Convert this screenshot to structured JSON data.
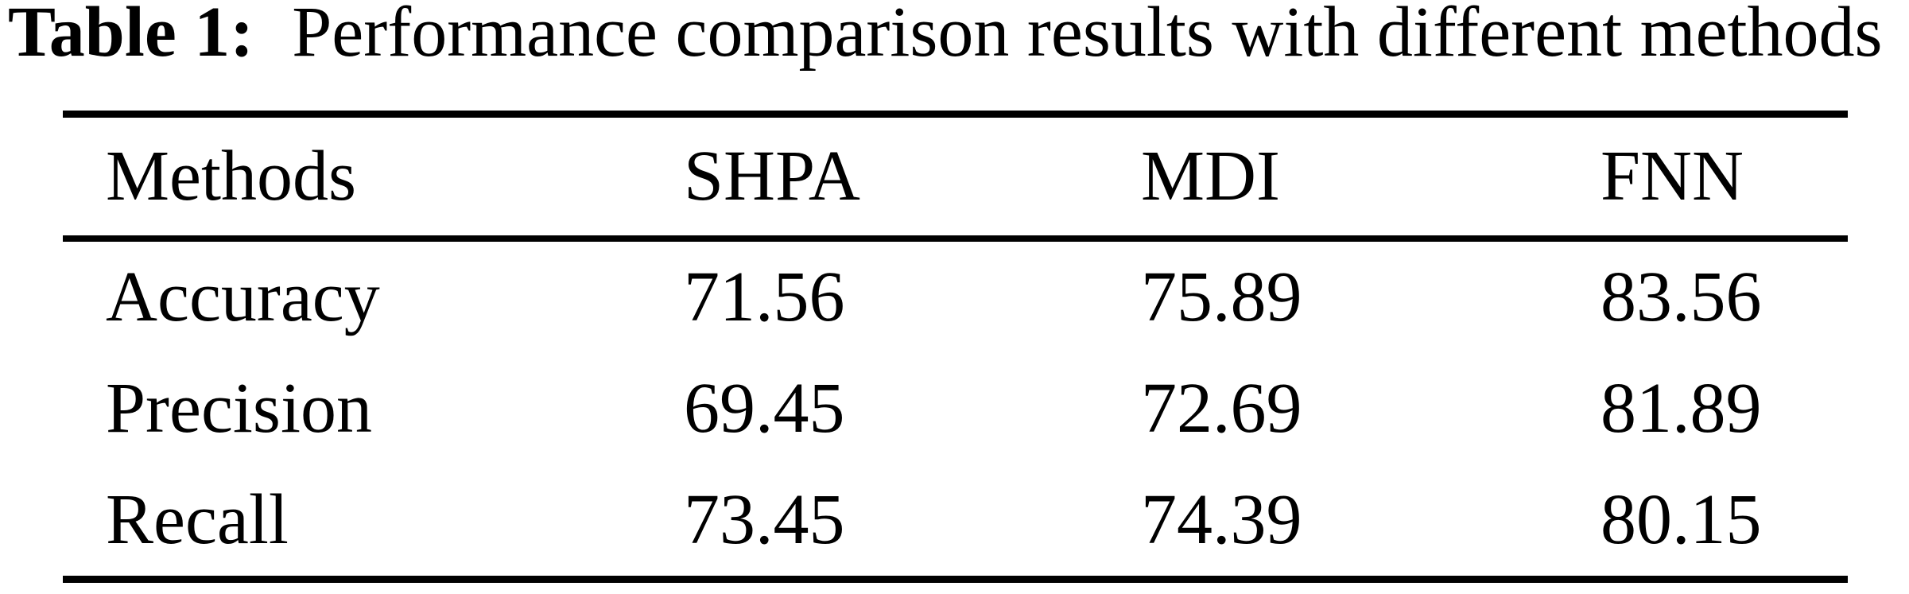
{
  "caption": {
    "label": "Table 1:",
    "text": "Performance comparison results with different methods"
  },
  "table": {
    "columns": [
      "Methods",
      "SHPA",
      "MDI",
      "FNN"
    ],
    "rows": [
      {
        "metric": "Accuracy",
        "values": [
          "71.56",
          "75.89",
          "83.56"
        ]
      },
      {
        "metric": "Precision",
        "values": [
          "69.45",
          "72.69",
          "81.89"
        ]
      },
      {
        "metric": "Recall",
        "values": [
          "73.45",
          "74.39",
          "80.15"
        ]
      }
    ]
  },
  "colors": {
    "text": "#000000",
    "background": "#ffffff",
    "rule": "#000000"
  }
}
